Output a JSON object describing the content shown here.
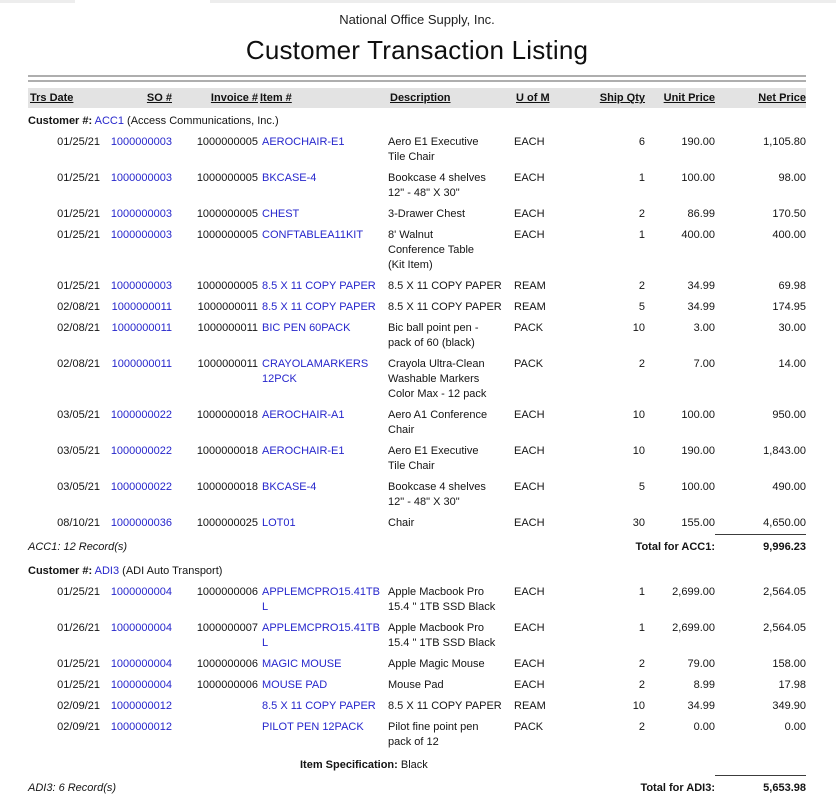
{
  "report": {
    "company": "National Office Supply, Inc.",
    "title": "Customer Transaction Listing"
  },
  "colors": {
    "link_blue": "#2626cc",
    "header_band_bg": "#e3e3e3",
    "rule_gray": "#aeaeae"
  },
  "table": {
    "customer_label": "Customer #:",
    "columns": [
      {
        "label": "Trs Date"
      },
      {
        "label": "SO #"
      },
      {
        "label": "Invoice #"
      },
      {
        "label": "Item #"
      },
      {
        "label": "Description"
      },
      {
        "label": "U of M"
      },
      {
        "label": "Ship Qty"
      },
      {
        "label": "Unit Price"
      },
      {
        "label": "Net Price"
      }
    ],
    "customers": [
      {
        "code": "ACC1",
        "name": "(Access Communications, Inc.)",
        "rows": [
          {
            "date": "01/25/21",
            "so": "1000000003",
            "invoice": "1000000005",
            "item": "AEROCHAIR-E1",
            "desc": "Aero E1 Executive\nTile Chair",
            "uom": "EACH",
            "qty": "6",
            "unit": "190.00",
            "net": "1,105.80"
          },
          {
            "date": "01/25/21",
            "so": "1000000003",
            "invoice": "1000000005",
            "item": "BKCASE-4",
            "desc": "Bookcase 4 shelves\n12\" - 48\" X 30\"",
            "uom": "EACH",
            "qty": "1",
            "unit": "100.00",
            "net": "98.00"
          },
          {
            "date": "01/25/21",
            "so": "1000000003",
            "invoice": "1000000005",
            "item": "CHEST",
            "desc": "3-Drawer Chest",
            "uom": "EACH",
            "qty": "2",
            "unit": "86.99",
            "net": "170.50"
          },
          {
            "date": "01/25/21",
            "so": "1000000003",
            "invoice": "1000000005",
            "item": "CONFTABLEA11KIT",
            "desc": "8' Walnut\nConference Table\n(Kit Item)",
            "uom": "EACH",
            "qty": "1",
            "unit": "400.00",
            "net": "400.00"
          },
          {
            "date": "01/25/21",
            "so": "1000000003",
            "invoice": "1000000005",
            "item": "8.5 X 11 COPY PAPER",
            "desc": "8.5 X 11 COPY PAPER",
            "uom": "REAM",
            "qty": "2",
            "unit": "34.99",
            "net": "69.98"
          },
          {
            "date": "02/08/21",
            "so": "1000000011",
            "invoice": "1000000011",
            "item": "8.5 X 11 COPY PAPER",
            "desc": "8.5 X 11 COPY PAPER",
            "uom": "REAM",
            "qty": "5",
            "unit": "34.99",
            "net": "174.95"
          },
          {
            "date": "02/08/21",
            "so": "1000000011",
            "invoice": "1000000011",
            "item": "BIC PEN 60PACK",
            "desc": "Bic ball point pen -\npack of 60 (black)",
            "uom": "PACK",
            "qty": "10",
            "unit": "3.00",
            "net": "30.00"
          },
          {
            "date": "02/08/21",
            "so": "1000000011",
            "invoice": "1000000011",
            "item": "CRAYOLAMARKERS 12PCK",
            "desc": "Crayola Ultra-Clean\nWashable Markers\nColor Max - 12 pack",
            "uom": "PACK",
            "qty": "2",
            "unit": "7.00",
            "net": "14.00"
          },
          {
            "date": "03/05/21",
            "so": "1000000022",
            "invoice": "1000000018",
            "item": "AEROCHAIR-A1",
            "desc": "Aero A1 Conference\nChair",
            "uom": "EACH",
            "qty": "10",
            "unit": "100.00",
            "net": "950.00"
          },
          {
            "date": "03/05/21",
            "so": "1000000022",
            "invoice": "1000000018",
            "item": "AEROCHAIR-E1",
            "desc": "Aero E1 Executive\nTile Chair",
            "uom": "EACH",
            "qty": "10",
            "unit": "190.00",
            "net": "1,843.00"
          },
          {
            "date": "03/05/21",
            "so": "1000000022",
            "invoice": "1000000018",
            "item": "BKCASE-4",
            "desc": "Bookcase 4 shelves\n12\" - 48\" X 30\"",
            "uom": "EACH",
            "qty": "5",
            "unit": "100.00",
            "net": "490.00"
          },
          {
            "date": "08/10/21",
            "so": "1000000036",
            "invoice": "1000000025",
            "item": "LOT01",
            "desc": "Chair",
            "uom": "EACH",
            "qty": "30",
            "unit": "155.00",
            "net": "4,650.00"
          }
        ],
        "records_note": "ACC1: 12 Record(s)",
        "total_label": "Total for ACC1:",
        "total_value": "9,996.23"
      },
      {
        "code": "ADI3",
        "name": "(ADI Auto Transport)",
        "rows": [
          {
            "date": "01/25/21",
            "so": "1000000004",
            "invoice": "1000000006",
            "item": "APPLEMCPRO15.41TBL",
            "desc": "Apple Macbook Pro\n15.4 \" 1TB SSD Black",
            "uom": "EACH",
            "qty": "1",
            "unit": "2,699.00",
            "net": "2,564.05"
          },
          {
            "date": "01/26/21",
            "so": "1000000004",
            "invoice": "1000000007",
            "item": "APPLEMCPRO15.41TBL",
            "desc": "Apple Macbook Pro\n15.4 \" 1TB SSD Black",
            "uom": "EACH",
            "qty": "1",
            "unit": "2,699.00",
            "net": "2,564.05"
          },
          {
            "date": "01/25/21",
            "so": "1000000004",
            "invoice": "1000000006",
            "item": "MAGIC MOUSE",
            "desc": "Apple Magic Mouse",
            "uom": "EACH",
            "qty": "2",
            "unit": "79.00",
            "net": "158.00"
          },
          {
            "date": "01/25/21",
            "so": "1000000004",
            "invoice": "1000000006",
            "item": "MOUSE PAD",
            "desc": "Mouse Pad",
            "uom": "EACH",
            "qty": "2",
            "unit": "8.99",
            "net": "17.98"
          },
          {
            "date": "02/09/21",
            "so": "1000000012",
            "invoice": "",
            "item": "8.5 X 11 COPY PAPER",
            "desc": "8.5 X 11 COPY PAPER",
            "uom": "REAM",
            "qty": "10",
            "unit": "34.99",
            "net": "349.90"
          },
          {
            "date": "02/09/21",
            "so": "1000000012",
            "invoice": "",
            "item": "PILOT PEN 12PACK",
            "desc": "Pilot fine point pen\npack of 12",
            "uom": "PACK",
            "qty": "2",
            "unit": "0.00",
            "net": "0.00"
          }
        ],
        "item_spec": {
          "label": "Item Specification:",
          "value": "Black"
        },
        "records_note": "ADI3: 6 Record(s)",
        "total_label": "Total for ADI3:",
        "total_value": "5,653.98"
      }
    ]
  }
}
